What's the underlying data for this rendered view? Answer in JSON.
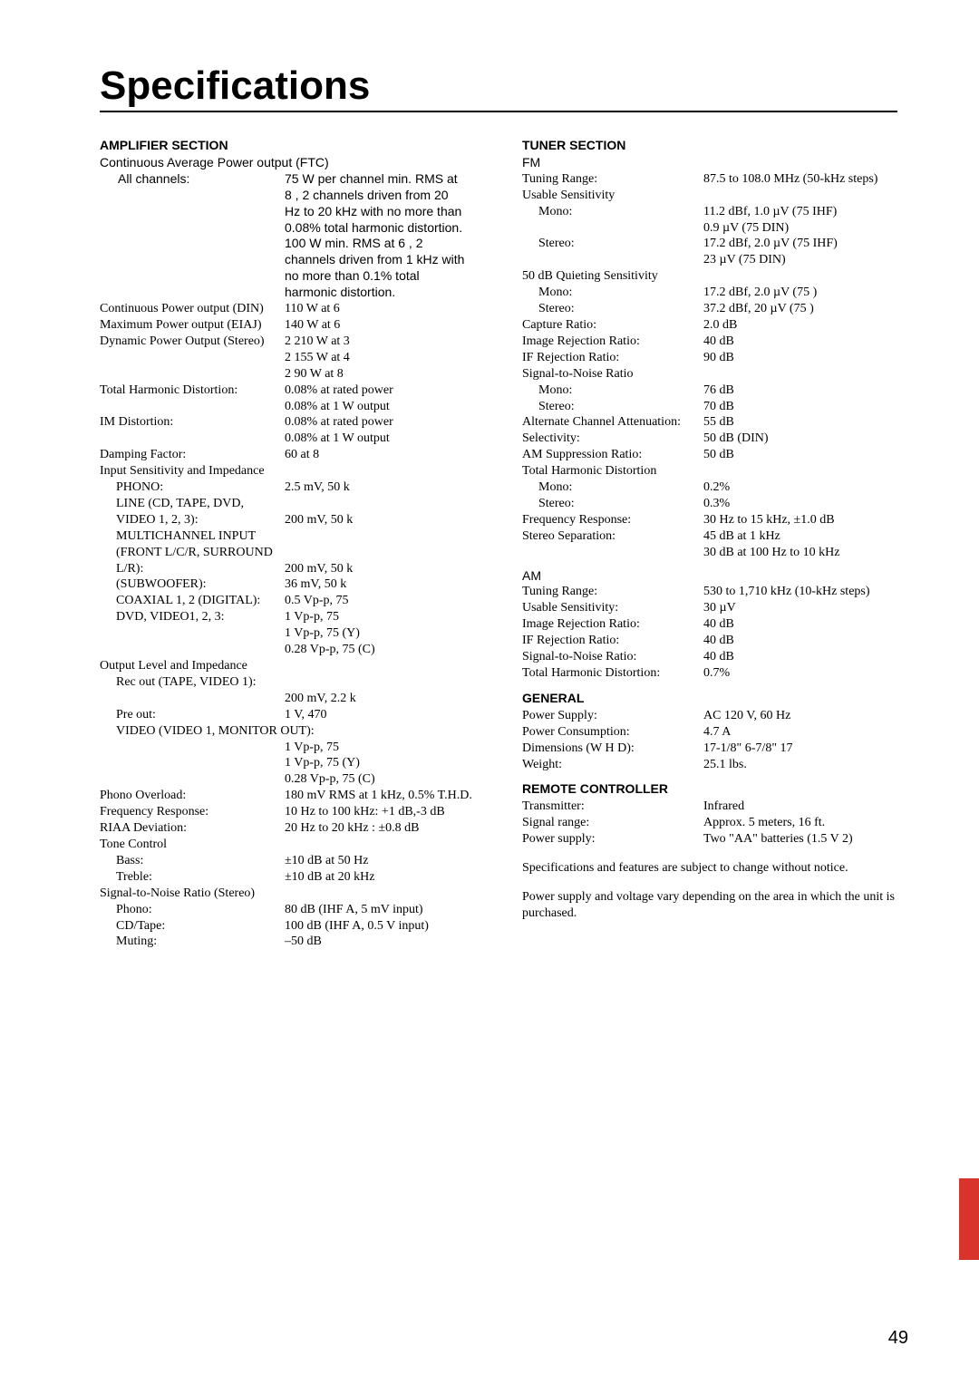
{
  "page": {
    "title": "Specifications",
    "number": "49"
  },
  "amp": {
    "heading": "AMPLIFIER SECTION",
    "cont_avg": "Continuous Average Power output (FTC)",
    "all_ch_label": "All channels:",
    "all_ch_l1": "75 W per channel min. RMS at",
    "all_ch_l2": "8 , 2 channels driven from 20",
    "all_ch_l3": "Hz to 20 kHz with no more than",
    "all_ch_l4": "0.08% total harmonic distortion.",
    "all_ch_l5": "100 W min. RMS at 6 , 2",
    "all_ch_l6": "channels driven from 1 kHz with",
    "all_ch_l7": "no more than 0.1% total",
    "all_ch_l8": "harmonic distortion.",
    "din_l": "Continuous Power output (DIN)",
    "din_v": "110 W at 6",
    "eiaj_l": "Maximum Power output (EIAJ)",
    "eiaj_v": "140 W at 6",
    "dpo_l": "Dynamic Power Output (Stereo)",
    "dpo_v1": "2    210 W at 3",
    "dpo_v2": "2    155 W at 4",
    "dpo_v3": "2    90 W at 8",
    "thd_l": "Total Harmonic Distortion:",
    "thd_v1": "0.08% at rated power",
    "thd_v2": "0.08% at 1 W output",
    "imd_l": "IM Distortion:",
    "imd_v1": "0.08% at rated power",
    "imd_v2": "0.08% at 1 W output",
    "damp_l": "Damping Factor:",
    "damp_v": "60 at 8",
    "isi_h": "Input Sensitivity and Impedance",
    "phono_l": "PHONO:",
    "phono_v": "2.5 mV, 50 k",
    "line_l1": "LINE (CD, TAPE, DVD,",
    "line_l2": "VIDEO 1, 2, 3):",
    "line_v": "200 mV, 50 k",
    "multi_l1": "MULTICHANNEL INPUT",
    "multi_l2": "(FRONT L/C/R, SURROUND",
    "multi_l3": " L/R):",
    "multi_v": "200 mV, 50 k",
    "sub_l": "(SUBWOOFER):",
    "sub_v": "36 mV, 50 k",
    "coax_l": "COAXIAL 1, 2 (DIGITAL):",
    "coax_v": "0.5 Vp-p, 75",
    "dvd_l": "DVD, VIDEO1, 2, 3:",
    "dvd_v1": "1 Vp-p, 75",
    "dvd_v2": "1 Vp-p, 75    (Y)",
    "dvd_v3": "0.28 Vp-p, 75    (C)",
    "oli_h": "Output Level and Impedance",
    "reco_l": "Rec out (TAPE, VIDEO 1):",
    "reco_v": "200 mV, 2.2 k",
    "pre_l": "Pre out:",
    "pre_v": "1 V, 470",
    "vmon_l": "VIDEO (VIDEO 1, MONITOR OUT):",
    "vmon_v1": "1 Vp-p, 75",
    "vmon_v2": "1 Vp-p, 75    (Y)",
    "vmon_v3": "0.28 Vp-p, 75    (C)",
    "pov_l": "Phono Overload:",
    "pov_v": "180 mV RMS at 1 kHz, 0.5% T.H.D.",
    "fr_l": "Frequency Response:",
    "fr_v": "10 Hz to 100 kHz: +1 dB,-3 dB",
    "riaa_l": "RIAA Deviation:",
    "riaa_v": "20 Hz to 20 kHz : ±0.8 dB",
    "tone_h": "Tone Control",
    "bass_l": "Bass:",
    "bass_v": "±10 dB at 50 Hz",
    "treb_l": "Treble:",
    "treb_v": "±10 dB at 20 kHz",
    "snr_h": "Signal-to-Noise Ratio (Stereo)",
    "snr_ph_l": "Phono:",
    "snr_ph_v": "80 dB (IHF A, 5 mV input)",
    "snr_cd_l": "CD/Tape:",
    "snr_cd_v": "100 dB (IHF A, 0.5 V input)",
    "mut_l": "Muting:",
    "mut_v": "–50 dB"
  },
  "tuner": {
    "heading": "TUNER SECTION",
    "fm": "FM",
    "fm_tr_l": "Tuning Range:",
    "fm_tr_v": "87.5 to 108.0 MHz (50-kHz steps)",
    "us_h": "Usable Sensitivity",
    "us_m_l": "Mono:",
    "us_m_v1": "11.2 dBf, 1.0 µV (75    IHF)",
    "us_m_v2": "0.9 µV (75    DIN)",
    "us_s_l": "Stereo:",
    "us_s_v1": "17.2 dBf, 2.0 µV (75    IHF)",
    "us_s_v2": "23 µV (75    DIN)",
    "qs_h": "50 dB Quieting Sensitivity",
    "qs_m_l": "Mono:",
    "qs_m_v": "17.2 dBf, 2.0 µV (75    )",
    "qs_s_l": "Stereo:",
    "qs_s_v": "37.2 dBf, 20 µV (75    )",
    "cap_l": "Capture Ratio:",
    "cap_v": "2.0 dB",
    "irr_l": "Image Rejection Ratio:",
    "irr_v": "40 dB",
    "ifr_l": "IF Rejection Ratio:",
    "ifr_v": "90 dB",
    "fsnr_h": "Signal-to-Noise Ratio",
    "fsnr_m_l": "Mono:",
    "fsnr_m_v": "76 dB",
    "fsnr_s_l": "Stereo:",
    "fsnr_s_v": "70 dB",
    "aca_l": "Alternate Channel Attenuation:",
    "aca_v": "55 dB",
    "sel_l": "Selectivity:",
    "sel_v": "50 dB (DIN)",
    "ams_l": "AM Suppression Ratio:",
    "ams_v": "50 dB",
    "fthd_h": "Total Harmonic Distortion",
    "fthd_m_l": "Mono:",
    "fthd_m_v": "0.2%",
    "fthd_s_l": "Stereo:",
    "fthd_s_v": "0.3%",
    "ffr_l": "Frequency Response:",
    "ffr_v": "30 Hz to 15 kHz, ±1.0 dB",
    "ssep_l": "Stereo Separation:",
    "ssep_v1": "45 dB at 1 kHz",
    "ssep_v2": "30 dB at 100 Hz to 10 kHz",
    "am": "AM",
    "am_tr_l": "Tuning Range:",
    "am_tr_v": "530 to 1,710 kHz (10-kHz steps)",
    "am_us_l": "Usable Sensitivity:",
    "am_us_v": "30 µV",
    "am_irr_l": "Image Rejection Ratio:",
    "am_irr_v": "40 dB",
    "am_ifr_l": "IF Rejection Ratio:",
    "am_ifr_v": "40 dB",
    "am_snr_l": "Signal-to-Noise Ratio:",
    "am_snr_v": "40 dB",
    "am_thd_l": "Total Harmonic Distortion:",
    "am_thd_v": "0.7%"
  },
  "general": {
    "heading": "GENERAL",
    "ps_l": "Power Supply:",
    "ps_v": "AC 120 V, 60 Hz",
    "pc_l": "Power Consumption:",
    "pc_v": "4.7 A",
    "dim_l": "Dimensions (W   H   D):",
    "dim_v": "17-1/8\"   6-7/8\"   17",
    "wt_l": "Weight:",
    "wt_v": "25.1 lbs."
  },
  "remote": {
    "heading": "REMOTE CONTROLLER",
    "tx_l": "Transmitter:",
    "tx_v": "Infrared",
    "sr_l": "Signal range:",
    "sr_v": "Approx. 5 meters, 16 ft.",
    "rps_l": "Power supply:",
    "rps_v": "Two \"AA\" batteries (1.5 V   2)"
  },
  "notes": {
    "n1": "Specifications and features are subject to change without notice.",
    "n2": "Power supply and voltage vary depending on the area in which the unit is purchased."
  }
}
